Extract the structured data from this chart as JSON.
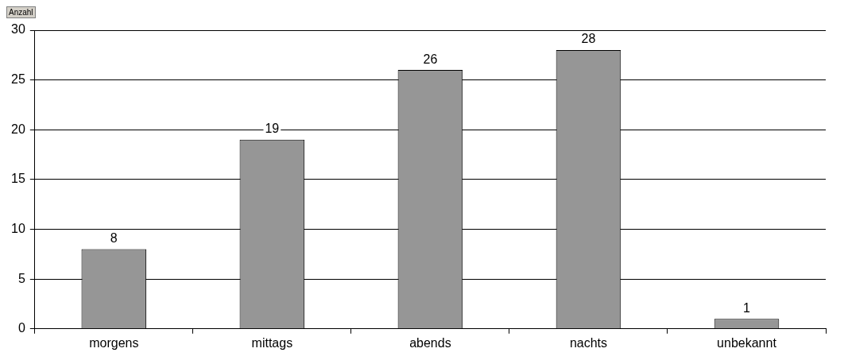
{
  "chart_data": {
    "type": "bar",
    "categories": [
      "morgens",
      "mittags",
      "abends",
      "nachts",
      "unbekannt"
    ],
    "values": [
      8,
      19,
      26,
      28,
      1
    ],
    "color": "#969696",
    "ylim": [
      0,
      30
    ],
    "yticks": [
      0,
      5,
      10,
      15,
      20,
      25,
      30
    ],
    "grid": "y",
    "legend": false,
    "data_labels": true,
    "annotations": [
      "Anzahl"
    ]
  }
}
